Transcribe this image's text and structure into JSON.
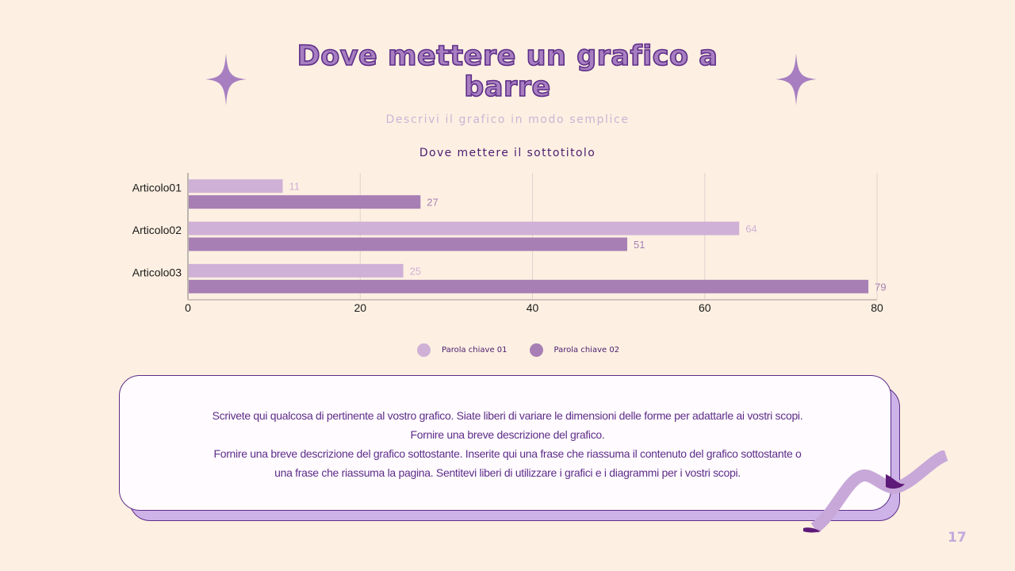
{
  "title": "Dove mettere un grafico a barre",
  "subtitle": "Descrivi il grafico in modo semplice",
  "chart_subtitle": "Dove mettere il sottotitolo",
  "chart_data": {
    "type": "bar",
    "orientation": "horizontal",
    "categories": [
      "Articolo01",
      "Articolo02",
      "Articolo03"
    ],
    "series": [
      {
        "name": "Parola chiave 01",
        "values": [
          11,
          64,
          25
        ],
        "color": "#cfb0d6"
      },
      {
        "name": "Parola chiave 02",
        "values": [
          27,
          51,
          79
        ],
        "color": "#a77fb4"
      }
    ],
    "xlim": [
      0,
      80
    ],
    "xticks": [
      0,
      20,
      40,
      60,
      80
    ],
    "grid": true,
    "legend_position": "bottom"
  },
  "card": {
    "lines": [
      "Scrivete qui qualcosa di pertinente al vostro grafico. Siate liberi di variare le dimensioni delle forme per adattarle ai vostri scopi.",
      "Fornire una breve descrizione del grafico.",
      "Fornire una breve descrizione del grafico sottostante. Inserite qui una frase che riassuma il contenuto del grafico sottostante o",
      "una frase che riassuma la pagina. Sentitevi liberi di utilizzare i grafici e i diagrammi per i vostri scopi."
    ]
  },
  "page_number": "17",
  "colors": {
    "background": "#fdf0e2",
    "accent": "#a77fc1",
    "dark_purple": "#5e2d88",
    "text_purple": "#4b1c70"
  },
  "decor": {
    "sparkle_icon": "four-point-star-icon",
    "ribbon_icon": "ribbon-icon"
  }
}
